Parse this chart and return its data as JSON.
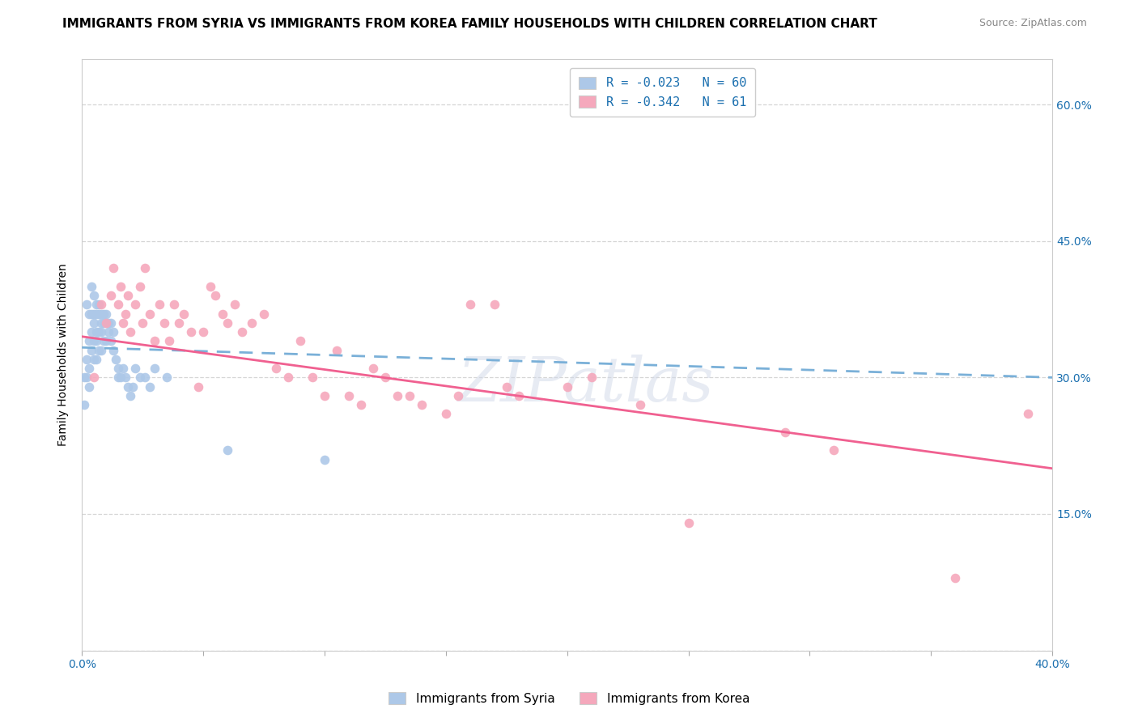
{
  "title": "IMMIGRANTS FROM SYRIA VS IMMIGRANTS FROM KOREA FAMILY HOUSEHOLDS WITH CHILDREN CORRELATION CHART",
  "source": "Source: ZipAtlas.com",
  "ylabel": "Family Households with Children",
  "xlim": [
    0.0,
    0.4
  ],
  "ylim": [
    0.0,
    0.65
  ],
  "xticks": [
    0.0,
    0.05,
    0.1,
    0.15,
    0.2,
    0.25,
    0.3,
    0.35,
    0.4
  ],
  "yticks": [
    0.0,
    0.15,
    0.3,
    0.45,
    0.6
  ],
  "syria_color": "#adc8e8",
  "korea_color": "#f5a8bc",
  "syria_line_color": "#7ab0d8",
  "korea_line_color": "#f06090",
  "R_syria": -0.023,
  "N_syria": 60,
  "R_korea": -0.342,
  "N_korea": 61,
  "legend_label_syria": "Immigrants from Syria",
  "legend_label_korea": "Immigrants from Korea",
  "watermark": "ZIPatlas",
  "syria_x": [
    0.001,
    0.001,
    0.002,
    0.002,
    0.002,
    0.003,
    0.003,
    0.003,
    0.003,
    0.004,
    0.004,
    0.004,
    0.004,
    0.005,
    0.005,
    0.005,
    0.005,
    0.005,
    0.006,
    0.006,
    0.006,
    0.006,
    0.006,
    0.007,
    0.007,
    0.007,
    0.007,
    0.008,
    0.008,
    0.008,
    0.008,
    0.009,
    0.009,
    0.009,
    0.01,
    0.01,
    0.01,
    0.011,
    0.011,
    0.012,
    0.012,
    0.013,
    0.013,
    0.014,
    0.015,
    0.015,
    0.016,
    0.017,
    0.018,
    0.019,
    0.02,
    0.021,
    0.022,
    0.024,
    0.026,
    0.028,
    0.03,
    0.035,
    0.06,
    0.1
  ],
  "syria_y": [
    0.3,
    0.27,
    0.38,
    0.32,
    0.3,
    0.37,
    0.34,
    0.31,
    0.29,
    0.4,
    0.37,
    0.35,
    0.33,
    0.39,
    0.37,
    0.36,
    0.34,
    0.32,
    0.38,
    0.37,
    0.35,
    0.34,
    0.32,
    0.38,
    0.37,
    0.35,
    0.33,
    0.37,
    0.36,
    0.35,
    0.33,
    0.37,
    0.36,
    0.34,
    0.37,
    0.36,
    0.34,
    0.36,
    0.35,
    0.36,
    0.34,
    0.35,
    0.33,
    0.32,
    0.31,
    0.3,
    0.3,
    0.31,
    0.3,
    0.29,
    0.28,
    0.29,
    0.31,
    0.3,
    0.3,
    0.29,
    0.31,
    0.3,
    0.22,
    0.21
  ],
  "korea_x": [
    0.005,
    0.008,
    0.01,
    0.012,
    0.013,
    0.015,
    0.016,
    0.017,
    0.018,
    0.019,
    0.02,
    0.022,
    0.024,
    0.025,
    0.026,
    0.028,
    0.03,
    0.032,
    0.034,
    0.036,
    0.038,
    0.04,
    0.042,
    0.045,
    0.048,
    0.05,
    0.053,
    0.055,
    0.058,
    0.06,
    0.063,
    0.066,
    0.07,
    0.075,
    0.08,
    0.085,
    0.09,
    0.095,
    0.1,
    0.105,
    0.11,
    0.115,
    0.12,
    0.125,
    0.13,
    0.135,
    0.14,
    0.15,
    0.155,
    0.16,
    0.17,
    0.175,
    0.18,
    0.2,
    0.21,
    0.23,
    0.25,
    0.29,
    0.31,
    0.36,
    0.39
  ],
  "korea_y": [
    0.3,
    0.38,
    0.36,
    0.39,
    0.42,
    0.38,
    0.4,
    0.36,
    0.37,
    0.39,
    0.35,
    0.38,
    0.4,
    0.36,
    0.42,
    0.37,
    0.34,
    0.38,
    0.36,
    0.34,
    0.38,
    0.36,
    0.37,
    0.35,
    0.29,
    0.35,
    0.4,
    0.39,
    0.37,
    0.36,
    0.38,
    0.35,
    0.36,
    0.37,
    0.31,
    0.3,
    0.34,
    0.3,
    0.28,
    0.33,
    0.28,
    0.27,
    0.31,
    0.3,
    0.28,
    0.28,
    0.27,
    0.26,
    0.28,
    0.38,
    0.38,
    0.29,
    0.28,
    0.29,
    0.3,
    0.27,
    0.14,
    0.24,
    0.22,
    0.08,
    0.26
  ],
  "title_fontsize": 11,
  "axis_label_fontsize": 10,
  "tick_fontsize": 10,
  "legend_fontsize": 11
}
